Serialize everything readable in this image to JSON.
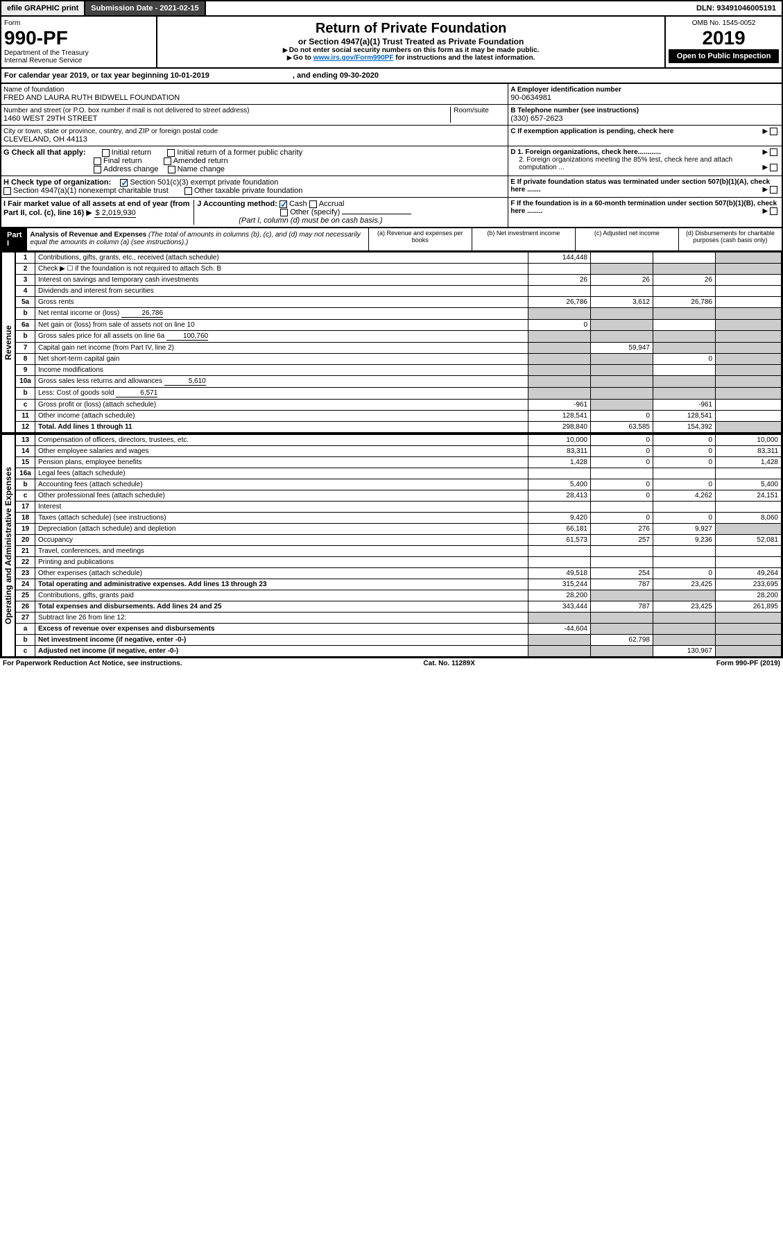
{
  "header": {
    "efile": "efile GRAPHIC print",
    "submission": "Submission Date - 2021-02-15",
    "dln": "DLN: 93491046005191"
  },
  "form": {
    "label": "Form",
    "number": "990-PF",
    "dept": "Department of the Treasury",
    "irs": "Internal Revenue Service",
    "title": "Return of Private Foundation",
    "subtitle": "or Section 4947(a)(1) Trust Treated as Private Foundation",
    "note1": "Do not enter social security numbers on this form as it may be made public.",
    "note2": "Go to",
    "note2link": "www.irs.gov/Form990PF",
    "note2end": "for instructions and the latest information.",
    "omb": "OMB No. 1545-0052",
    "year": "2019",
    "open": "Open to Public Inspection"
  },
  "cal": {
    "text": "For calendar year 2019, or tax year beginning 10-01-2019",
    "end": ", and ending 09-30-2020"
  },
  "org": {
    "name_lbl": "Name of foundation",
    "name": "FRED AND LAURA RUTH BIDWELL FOUNDATION",
    "addr_lbl": "Number and street (or P.O. box number if mail is not delivered to street address)",
    "addr": "1460 WEST 29TH STREET",
    "room_lbl": "Room/suite",
    "city_lbl": "City or town, state or province, country, and ZIP or foreign postal code",
    "city": "CLEVELAND, OH  44113",
    "ein_lbl": "A Employer identification number",
    "ein": "90-0634981",
    "tel_lbl": "B Telephone number (see instructions)",
    "tel": "(330) 657-2623",
    "c": "C If exemption application is pending, check here",
    "d1": "D 1. Foreign organizations, check here............",
    "d2": "2. Foreign organizations meeting the 85% test, check here and attach computation ...",
    "e": "E If private foundation status was terminated under section 507(b)(1)(A), check here .......",
    "f": "F If the foundation is in a 60-month termination under section 507(b)(1)(B), check here ........"
  },
  "g": {
    "lbl": "G Check all that apply:",
    "opts": [
      "Initial return",
      "Final return",
      "Address change",
      "Initial return of a former public charity",
      "Amended return",
      "Name change"
    ]
  },
  "h": {
    "lbl": "H Check type of organization:",
    "o1": "Section 501(c)(3) exempt private foundation",
    "o2": "Section 4947(a)(1) nonexempt charitable trust",
    "o3": "Other taxable private foundation"
  },
  "i": {
    "lbl": "I Fair market value of all assets at end of year (from Part II, col. (c), line 16)",
    "val": "$  2,019,930"
  },
  "j": {
    "lbl": "J Accounting method:",
    "cash": "Cash",
    "accrual": "Accrual",
    "other": "Other (specify)",
    "note": "(Part I, column (d) must be on cash basis.)"
  },
  "part1": {
    "hdr": "Part I",
    "title": "Analysis of Revenue and Expenses",
    "note": "(The total of amounts in columns (b), (c), and (d) may not necessarily equal the amounts in column (a) (see instructions).)",
    "cols": {
      "a": "(a)   Revenue and expenses per books",
      "b": "(b)  Net investment income",
      "c": "(c)  Adjusted net income",
      "d": "(d)  Disbursements for charitable purposes (cash basis only)"
    }
  },
  "sections": {
    "rev": "Revenue",
    "exp": "Operating and Administrative Expenses"
  },
  "lines": [
    {
      "n": "1",
      "d": "Contributions, gifts, grants, etc., received (attach schedule)",
      "a": "144,448",
      "dg": true
    },
    {
      "n": "2",
      "d": "Check ▶ ☐ if the foundation is not required to attach Sch. B",
      "bg": true,
      "cg": true,
      "dg": true
    },
    {
      "n": "3",
      "d": "Interest on savings and temporary cash investments",
      "a": "26",
      "b": "26",
      "c": "26"
    },
    {
      "n": "4",
      "d": "Dividends and interest from securities"
    },
    {
      "n": "5a",
      "d": "Gross rents",
      "a": "26,786",
      "b": "3,612",
      "c": "26,786"
    },
    {
      "n": "b",
      "d": "Net rental income or (loss)",
      "inline": "26,786",
      "ag": true,
      "bg": true,
      "cg": true,
      "dg": true
    },
    {
      "n": "6a",
      "d": "Net gain or (loss) from sale of assets not on line 10",
      "a": "0",
      "bg": true,
      "dg": true
    },
    {
      "n": "b",
      "d": "Gross sales price for all assets on line 6a",
      "inline": "100,760",
      "ag": true,
      "bg": true,
      "cg": true,
      "dg": true
    },
    {
      "n": "7",
      "d": "Capital gain net income (from Part IV, line 2)",
      "ag": true,
      "b": "59,947",
      "cg": true,
      "dg": true
    },
    {
      "n": "8",
      "d": "Net short-term capital gain",
      "ag": true,
      "bg": true,
      "c": "0",
      "dg": true
    },
    {
      "n": "9",
      "d": "Income modifications",
      "ag": true,
      "bg": true,
      "dg": true
    },
    {
      "n": "10a",
      "d": "Gross sales less returns and allowances",
      "inline": "5,610",
      "ag": true,
      "bg": true,
      "cg": true,
      "dg": true
    },
    {
      "n": "b",
      "d": "Less: Cost of goods sold",
      "inline": "6,571",
      "ag": true,
      "bg": true,
      "cg": true,
      "dg": true
    },
    {
      "n": "c",
      "d": "Gross profit or (loss) (attach schedule)",
      "a": "-961",
      "bg": true,
      "c": "-961"
    },
    {
      "n": "11",
      "d": "Other income (attach schedule)",
      "a": "128,541",
      "b": "0",
      "c": "128,541"
    },
    {
      "n": "12",
      "d": "Total. Add lines 1 through 11",
      "bold": true,
      "a": "298,840",
      "b": "63,585",
      "c": "154,392",
      "dg": true
    }
  ],
  "exp_lines": [
    {
      "n": "13",
      "d": "Compensation of officers, directors, trustees, etc.",
      "a": "10,000",
      "b": "0",
      "c": "0",
      "dd": "10,000"
    },
    {
      "n": "14",
      "d": "Other employee salaries and wages",
      "a": "83,311",
      "b": "0",
      "c": "0",
      "dd": "83,311"
    },
    {
      "n": "15",
      "d": "Pension plans, employee benefits",
      "a": "1,428",
      "b": "0",
      "c": "0",
      "dd": "1,428"
    },
    {
      "n": "16a",
      "d": "Legal fees (attach schedule)"
    },
    {
      "n": "b",
      "d": "Accounting fees (attach schedule)",
      "a": "5,400",
      "b": "0",
      "c": "0",
      "dd": "5,400"
    },
    {
      "n": "c",
      "d": "Other professional fees (attach schedule)",
      "a": "28,413",
      "b": "0",
      "c": "4,262",
      "dd": "24,151"
    },
    {
      "n": "17",
      "d": "Interest"
    },
    {
      "n": "18",
      "d": "Taxes (attach schedule) (see instructions)",
      "a": "9,420",
      "b": "0",
      "c": "0",
      "dd": "8,060"
    },
    {
      "n": "19",
      "d": "Depreciation (attach schedule) and depletion",
      "a": "66,181",
      "b": "276",
      "c": "9,927",
      "dg": true
    },
    {
      "n": "20",
      "d": "Occupancy",
      "a": "61,573",
      "b": "257",
      "c": "9,236",
      "dd": "52,081"
    },
    {
      "n": "21",
      "d": "Travel, conferences, and meetings"
    },
    {
      "n": "22",
      "d": "Printing and publications"
    },
    {
      "n": "23",
      "d": "Other expenses (attach schedule)",
      "a": "49,518",
      "b": "254",
      "c": "0",
      "dd": "49,264"
    },
    {
      "n": "24",
      "d": "Total operating and administrative expenses. Add lines 13 through 23",
      "bold": true,
      "a": "315,244",
      "b": "787",
      "c": "23,425",
      "dd": "233,695"
    },
    {
      "n": "25",
      "d": "Contributions, gifts, grants paid",
      "a": "28,200",
      "bg": true,
      "cg": true,
      "dd": "28,200"
    },
    {
      "n": "26",
      "d": "Total expenses and disbursements. Add lines 24 and 25",
      "bold": true,
      "a": "343,444",
      "b": "787",
      "c": "23,425",
      "dd": "261,895"
    },
    {
      "n": "27",
      "d": "Subtract line 26 from line 12:",
      "ag": true,
      "bg": true,
      "cg": true,
      "dg": true
    },
    {
      "n": "a",
      "d": "Excess of revenue over expenses and disbursements",
      "bold": true,
      "a": "-44,604",
      "bg": true,
      "cg": true,
      "dg": true
    },
    {
      "n": "b",
      "d": "Net investment income (if negative, enter -0-)",
      "bold": true,
      "ag": true,
      "b": "62,798",
      "cg": true,
      "dg": true
    },
    {
      "n": "c",
      "d": "Adjusted net income (if negative, enter -0-)",
      "bold": true,
      "ag": true,
      "bg": true,
      "c": "130,967",
      "dg": true
    }
  ],
  "footer": {
    "left": "For Paperwork Reduction Act Notice, see instructions.",
    "mid": "Cat. No. 11289X",
    "right": "Form 990-PF (2019)"
  }
}
